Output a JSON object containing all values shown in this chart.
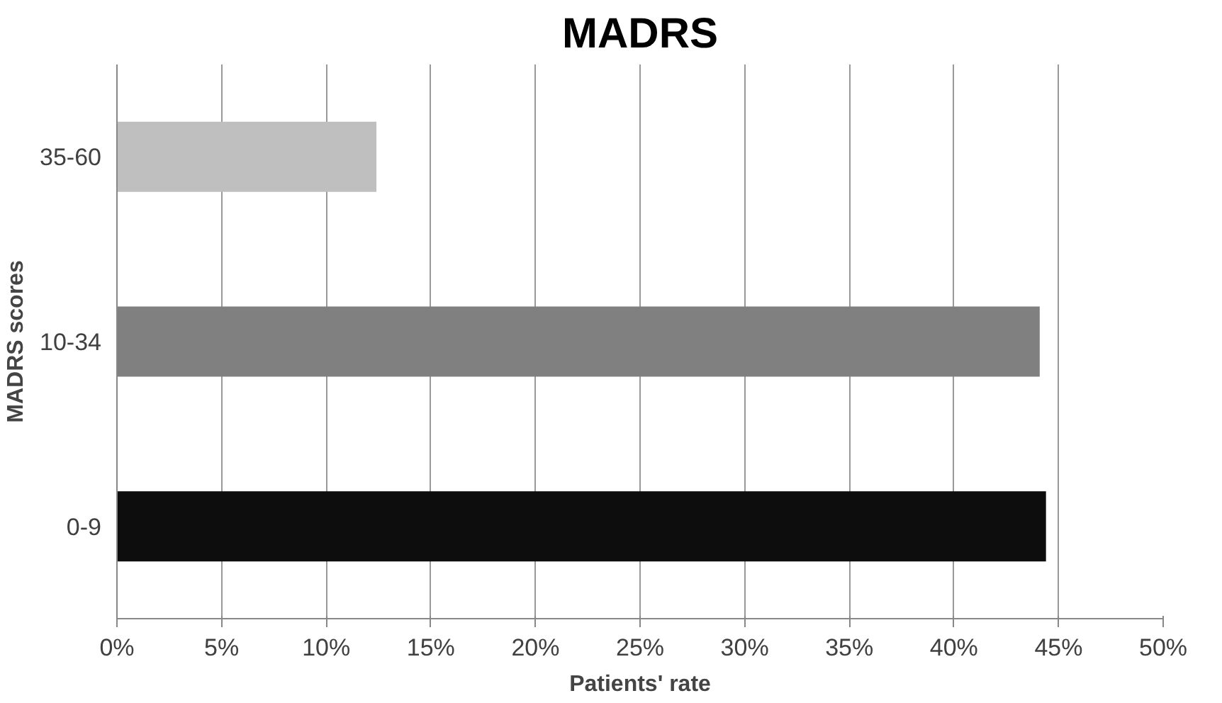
{
  "chart_data": {
    "type": "bar",
    "orientation": "horizontal",
    "title": "MADRS",
    "xlabel": "Patients' rate",
    "ylabel": "MADRS scores",
    "categories": [
      "35-60",
      "10-34",
      "0-9"
    ],
    "values": [
      12.4,
      44.1,
      44.4
    ],
    "colors": [
      "#bfbfbf",
      "#808080",
      "#0d0d0d"
    ],
    "xlim": [
      0,
      50
    ],
    "xticks": [
      {
        "value": 0,
        "label": "0%"
      },
      {
        "value": 5,
        "label": "5%"
      },
      {
        "value": 10,
        "label": "10%"
      },
      {
        "value": 15,
        "label": "15%"
      },
      {
        "value": 20,
        "label": "20%"
      },
      {
        "value": 25,
        "label": "25%"
      },
      {
        "value": 30,
        "label": "30%"
      },
      {
        "value": 35,
        "label": "35%"
      },
      {
        "value": 40,
        "label": "40%"
      },
      {
        "value": 45,
        "label": "45%"
      },
      {
        "value": 50,
        "label": "50%"
      }
    ],
    "grid": "x"
  }
}
